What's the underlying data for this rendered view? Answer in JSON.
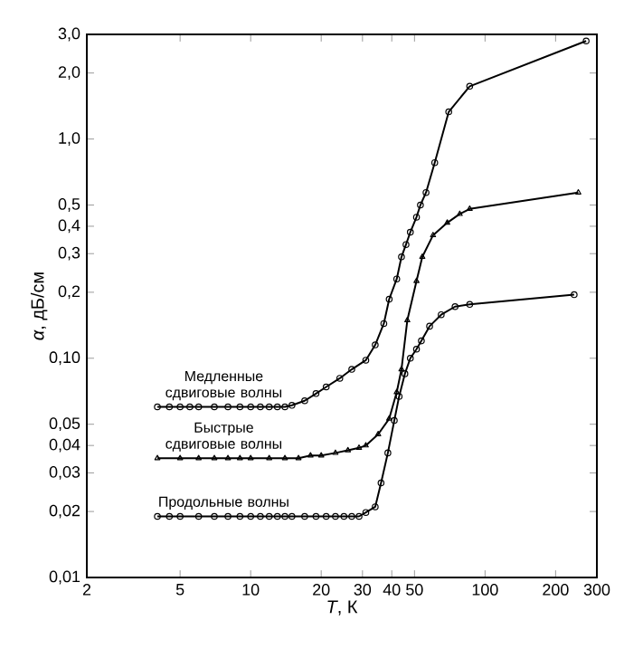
{
  "chart_data": {
    "type": "line",
    "xlabel": "*T*, К",
    "ylabel": "*α*, дБ/см",
    "log": "xy",
    "line_style": "solid",
    "xlim": [
      2,
      300
    ],
    "ylim": [
      0.01,
      3.0
    ],
    "xticks": [
      2,
      5,
      10,
      20,
      30,
      40,
      50,
      100,
      200,
      300
    ],
    "yticks": [
      {
        "value": 0.01,
        "label": "0,01"
      },
      {
        "value": 0.02,
        "label": "0,02"
      },
      {
        "value": 0.03,
        "label": "0,03"
      },
      {
        "value": 0.04,
        "label": "0,04"
      },
      {
        "value": 0.05,
        "label": "0,05"
      },
      {
        "value": 0.1,
        "label": "0,10"
      },
      {
        "value": 0.2,
        "label": "0,2"
      },
      {
        "value": 0.3,
        "label": "0,3"
      },
      {
        "value": 0.4,
        "label": "0,4"
      },
      {
        "value": 0.5,
        "label": "0,5"
      },
      {
        "value": 1.0,
        "label": "1,0"
      },
      {
        "value": 2.0,
        "label": "2,0"
      },
      {
        "value": 3.0,
        "label": "3,0"
      }
    ],
    "series": [
      {
        "color": "#000000",
        "marker": "circle",
        "x": [
          4,
          4.5,
          5,
          5.5,
          6,
          7,
          8,
          9,
          10,
          11,
          12,
          13,
          14,
          15,
          17,
          19,
          21,
          24,
          27,
          31,
          34,
          37,
          39,
          42,
          44,
          46,
          48,
          51,
          53,
          56,
          61,
          70,
          86,
          270
        ],
        "values": [
          0.06,
          0.06,
          0.06,
          0.06,
          0.06,
          0.06,
          0.06,
          0.06,
          0.06,
          0.06,
          0.06,
          0.06,
          0.06,
          0.061,
          0.064,
          0.069,
          0.074,
          0.081,
          0.089,
          0.098,
          0.115,
          0.144,
          0.186,
          0.23,
          0.29,
          0.33,
          0.376,
          0.44,
          0.5,
          0.57,
          0.78,
          1.33,
          1.74,
          2.8
        ]
      },
      {
        "color": "#000000",
        "marker": "triangle",
        "x": [
          4,
          5,
          6,
          7,
          8,
          9,
          10,
          12,
          14,
          16,
          18,
          20,
          23,
          26,
          29,
          31,
          35,
          39,
          42,
          44,
          46.6,
          51,
          54,
          60,
          69,
          78,
          86,
          250
        ],
        "values": [
          0.035,
          0.035,
          0.035,
          0.035,
          0.035,
          0.035,
          0.035,
          0.035,
          0.035,
          0.035,
          0.036,
          0.036,
          0.037,
          0.038,
          0.039,
          0.04,
          0.045,
          0.053,
          0.07,
          0.089,
          0.149,
          0.225,
          0.29,
          0.364,
          0.415,
          0.455,
          0.48,
          0.57
        ]
      },
      {
        "color": "#000000",
        "marker": "circle",
        "x": [
          4,
          4.5,
          5,
          6,
          7,
          8,
          9,
          10,
          11,
          12,
          13,
          14,
          15,
          17,
          19,
          21,
          23,
          25,
          27,
          29,
          31,
          34,
          36,
          38.5,
          41,
          43,
          45.5,
          48,
          51,
          53.5,
          58,
          65,
          74.5,
          86,
          240
        ],
        "values": [
          0.019,
          0.019,
          0.019,
          0.019,
          0.019,
          0.019,
          0.019,
          0.019,
          0.019,
          0.019,
          0.019,
          0.019,
          0.019,
          0.019,
          0.019,
          0.019,
          0.019,
          0.019,
          0.019,
          0.019,
          0.0198,
          0.021,
          0.027,
          0.037,
          0.052,
          0.067,
          0.085,
          0.1,
          0.11,
          0.12,
          0.14,
          0.158,
          0.172,
          0.176,
          0.195
        ]
      }
    ],
    "annotations": [
      "Медленные сдвиговые волны",
      "Быстрые сдвиговые волны",
      "Продольные волны"
    ]
  }
}
